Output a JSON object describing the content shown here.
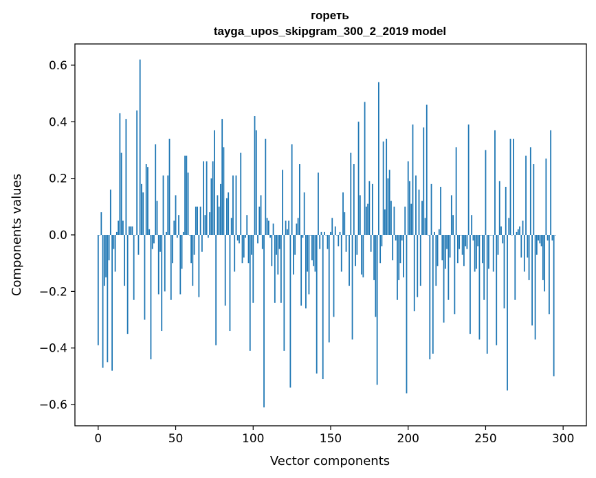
{
  "chart_data": {
    "type": "bar",
    "title": "гореть",
    "subtitle": "tayga_upos_skipgram_300_2_2019 model",
    "xlabel": "Vector components",
    "ylabel": "Components values",
    "xlim": [
      -15,
      315
    ],
    "ylim": [
      -0.675,
      0.675
    ],
    "xticks": [
      0,
      50,
      100,
      150,
      200,
      250,
      300
    ],
    "yticks": [
      -0.6,
      -0.4,
      -0.2,
      0.0,
      0.2,
      0.4,
      0.6
    ],
    "xtick_labels": [
      "0",
      "50",
      "100",
      "150",
      "200",
      "250",
      "300"
    ],
    "ytick_labels": [
      "−0.6",
      "−0.4",
      "−0.2",
      "0.0",
      "0.2",
      "0.4",
      "0.6"
    ],
    "bar_color": "#1f77b4",
    "values": [
      -0.39,
      0.0,
      0.08,
      -0.47,
      -0.18,
      -0.15,
      -0.45,
      -0.09,
      0.16,
      -0.48,
      -0.05,
      -0.13,
      0.01,
      0.05,
      0.43,
      0.29,
      0.05,
      -0.18,
      0.41,
      -0.35,
      0.03,
      0.03,
      0.03,
      -0.23,
      0.0,
      0.44,
      -0.07,
      0.62,
      0.18,
      0.15,
      -0.3,
      0.25,
      0.24,
      0.02,
      -0.44,
      -0.05,
      -0.03,
      0.32,
      0.12,
      -0.21,
      -0.06,
      -0.34,
      0.21,
      -0.2,
      0.01,
      0.21,
      0.34,
      -0.23,
      -0.1,
      0.05,
      0.14,
      -0.01,
      0.07,
      -0.21,
      -0.12,
      0.01,
      0.28,
      0.28,
      0.22,
      0.0,
      -0.1,
      -0.18,
      -0.07,
      0.1,
      0.1,
      -0.22,
      0.1,
      -0.06,
      0.26,
      0.07,
      0.26,
      -0.01,
      0.08,
      0.2,
      0.26,
      0.37,
      -0.39,
      0.14,
      0.1,
      0.18,
      0.41,
      0.31,
      -0.25,
      0.13,
      0.15,
      -0.34,
      0.06,
      0.21,
      -0.13,
      0.21,
      -0.02,
      -0.03,
      0.29,
      -0.1,
      -0.08,
      -0.01,
      0.07,
      -0.1,
      -0.41,
      -0.07,
      -0.24,
      0.42,
      0.37,
      -0.03,
      0.1,
      0.14,
      -0.05,
      -0.61,
      0.34,
      0.06,
      0.05,
      -0.01,
      -0.11,
      0.04,
      -0.24,
      -0.07,
      -0.14,
      -0.05,
      -0.24,
      0.23,
      -0.41,
      0.05,
      0.02,
      0.05,
      -0.54,
      0.32,
      -0.14,
      -0.07,
      0.04,
      0.06,
      0.25,
      -0.25,
      -0.01,
      0.15,
      -0.26,
      -0.13,
      -0.21,
      0.0,
      -0.09,
      -0.11,
      -0.13,
      -0.49,
      0.22,
      -0.05,
      0.01,
      -0.51,
      0.01,
      0.0,
      -0.05,
      -0.38,
      0.01,
      0.06,
      -0.29,
      0.03,
      0.0,
      -0.04,
      0.01,
      -0.13,
      0.15,
      0.08,
      -0.06,
      0.0,
      -0.18,
      0.29,
      -0.37,
      0.25,
      -0.11,
      -0.07,
      0.4,
      0.14,
      -0.14,
      -0.15,
      0.47,
      0.1,
      0.11,
      0.19,
      -0.06,
      0.18,
      -0.16,
      -0.29,
      -0.53,
      0.54,
      -0.1,
      -0.04,
      0.33,
      0.09,
      0.34,
      0.2,
      0.23,
      0.12,
      -0.09,
      0.1,
      -0.02,
      -0.23,
      -0.16,
      -0.1,
      -0.02,
      -0.15,
      0.1,
      -0.56,
      0.26,
      0.19,
      0.11,
      0.39,
      -0.27,
      0.21,
      -0.22,
      0.16,
      -0.18,
      0.12,
      0.38,
      0.06,
      0.46,
      0.0,
      -0.44,
      0.18,
      -0.42,
      0.01,
      -0.18,
      -0.11,
      0.02,
      0.17,
      -0.09,
      -0.31,
      -0.12,
      -0.05,
      -0.23,
      -0.08,
      0.14,
      0.07,
      -0.28,
      0.31,
      -0.1,
      -0.05,
      0.0,
      -0.07,
      -0.11,
      -0.04,
      -0.05,
      0.39,
      -0.35,
      0.07,
      -0.02,
      -0.13,
      -0.12,
      -0.04,
      -0.37,
      0.0,
      -0.1,
      -0.23,
      0.3,
      -0.42,
      -0.12,
      0.0,
      0.0,
      -0.13,
      0.37,
      -0.39,
      -0.07,
      0.19,
      0.03,
      -0.03,
      -0.26,
      0.17,
      -0.55,
      0.06,
      0.34,
      0.0,
      0.34,
      -0.23,
      0.01,
      0.02,
      0.03,
      -0.08,
      0.05,
      -0.13,
      0.28,
      -0.08,
      -0.16,
      0.31,
      -0.32,
      0.25,
      -0.37,
      -0.07,
      -0.02,
      -0.03,
      -0.04,
      -0.16,
      -0.2,
      0.27,
      -0.02,
      -0.28,
      0.37,
      -0.02,
      -0.5,
      0.0
    ]
  }
}
